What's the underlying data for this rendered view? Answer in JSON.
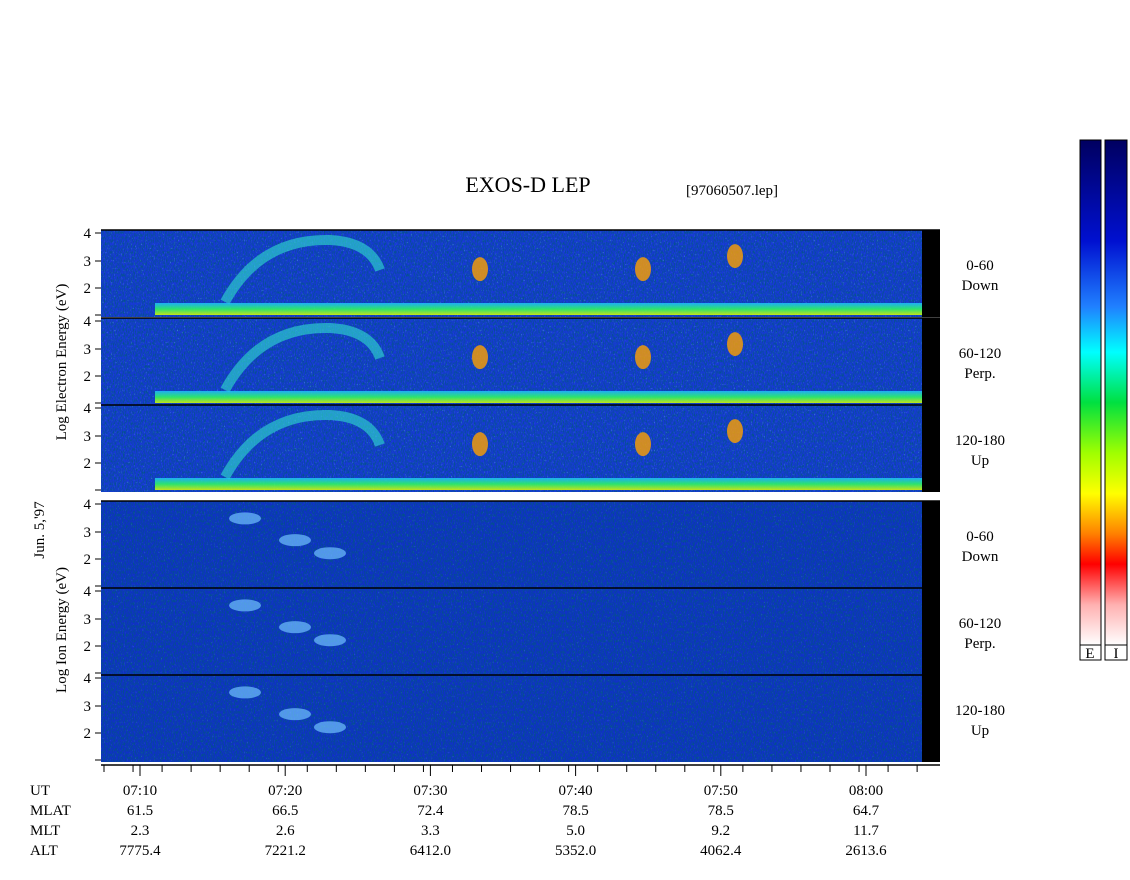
{
  "title": "EXOS-D LEP",
  "file": "[97060507.lep]",
  "date_label": "Jun. 5,'97",
  "electron_axis_label": "Log  Electron  Energy (eV)",
  "ion_axis_label": "Log  Ion  Energy (eV)",
  "yticks": [
    4,
    3,
    2
  ],
  "panel_labels": [
    {
      "range": "0-60",
      "direction": "Down"
    },
    {
      "range": "60-120",
      "direction": "Perp."
    },
    {
      "range": "120-180",
      "direction": "Up"
    }
  ],
  "x_axis": {
    "rows": [
      {
        "name": "UT",
        "values": [
          "07:10",
          "07:20",
          "07:30",
          "07:40",
          "07:50",
          "08:00"
        ]
      },
      {
        "name": "MLAT",
        "values": [
          "61.5",
          "66.5",
          "72.4",
          "78.5",
          "78.5",
          "64.7"
        ]
      },
      {
        "name": "MLT",
        "values": [
          "2.3",
          "2.6",
          "3.3",
          "5.0",
          "9.2",
          "11.7"
        ]
      },
      {
        "name": "ALT",
        "values": [
          "7775.4",
          "7221.2",
          "6412.0",
          "5352.0",
          "4062.4",
          "2613.6"
        ]
      }
    ]
  },
  "colorbar_labels": [
    "E",
    "I"
  ]
}
